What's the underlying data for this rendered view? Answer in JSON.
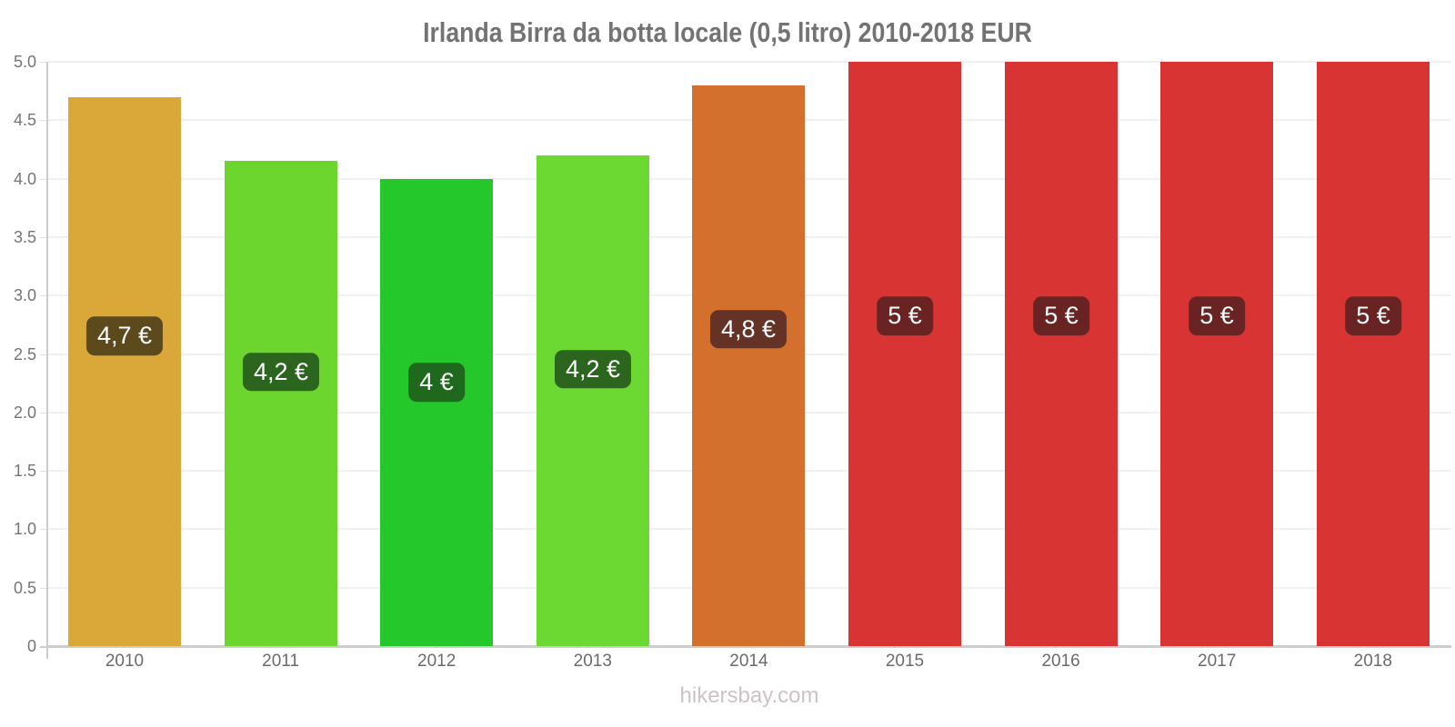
{
  "title": "Irlanda Birra da botta locale (0,5 litro) 2010-2018 EUR",
  "footer": "hikersbay.com",
  "colors": {
    "title_text": "#737373",
    "y_tick_text": "#757575",
    "x_label_text": "#6b6b6b",
    "axis_line": "#cccccc",
    "gridline": "#f1f1f1",
    "bar_label_text": "#ffffff",
    "footer_text": "#cbc3c4",
    "background": "#ffffff"
  },
  "chart_data": {
    "type": "bar",
    "title": "Irlanda Birra da botta locale (0,5 litro) 2010-2018 EUR",
    "xlabel": "",
    "ylabel": "",
    "categories": [
      "2010",
      "2011",
      "2012",
      "2013",
      "2014",
      "2015",
      "2016",
      "2017",
      "2018"
    ],
    "values": [
      4.7,
      4.15,
      4.0,
      4.2,
      4.8,
      5.0,
      5.0,
      5.0,
      5.0
    ],
    "bar_labels": [
      "4,7 €",
      "4,2 €",
      "4 €",
      "4,2 €",
      "4,8 €",
      "5 €",
      "5 €",
      "5 €",
      "5 €"
    ],
    "bar_colors": [
      "#d9a839",
      "#6cd62e",
      "#25c82b",
      "#6bd932",
      "#d4702e",
      "#d93434",
      "#d93434",
      "#d93434",
      "#d93434"
    ],
    "label_box_colors": [
      "#5c4a1d",
      "#2c661e",
      "#1e691e",
      "#2c661e",
      "#643326",
      "#6a2323",
      "#6a2323",
      "#6a2323",
      "#6a2323"
    ],
    "ylim": [
      0,
      5
    ],
    "ytick_step": 0.5,
    "ytick_labels": [
      "0",
      "0.5",
      "1.0",
      "1.5",
      "2.0",
      "2.5",
      "3.0",
      "3.5",
      "4.0",
      "4.5",
      "5.0"
    ],
    "grid": true,
    "legend": false,
    "currency": "EUR"
  }
}
